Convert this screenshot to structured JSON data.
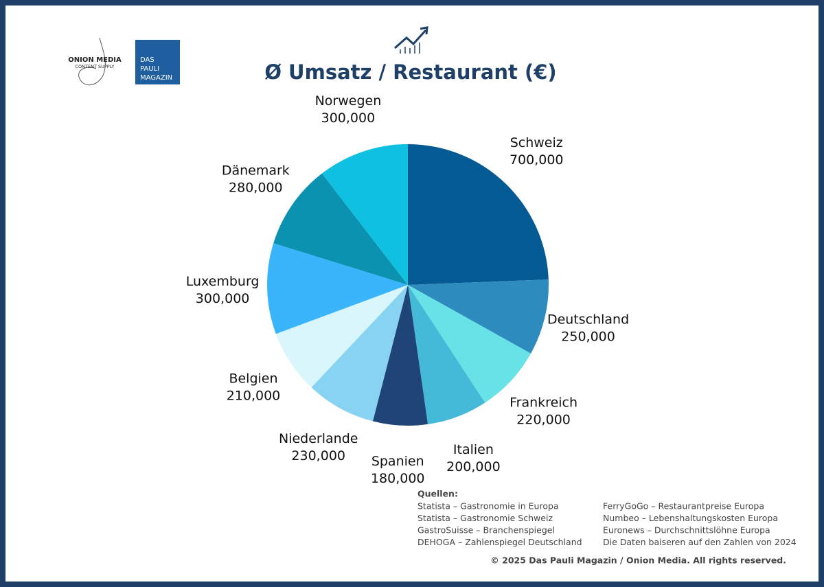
{
  "chart_data": {
    "type": "pie",
    "title": "Ø Umsatz / Restaurant (€)",
    "categories": [
      "Schweiz",
      "Deutschland",
      "Frankreich",
      "Italien",
      "Spanien",
      "Niederlande",
      "Belgien",
      "Luxemburg",
      "Dänemark",
      "Norwegen"
    ],
    "values": [
      700000,
      250000,
      220000,
      200000,
      180000,
      230000,
      210000,
      300000,
      280000,
      300000
    ],
    "value_labels": [
      "700,000",
      "250,000",
      "220,000",
      "200,000",
      "180,000",
      "230,000",
      "210,000",
      "300,000",
      "280,000",
      "300,000"
    ],
    "colors": [
      "#045a92",
      "#2e8bbd",
      "#67e3e8",
      "#45b9d8",
      "#1e4478",
      "#88d3f2",
      "#d8f6fc",
      "#3ab5fb",
      "#0a92b0",
      "#0fc0e0"
    ]
  },
  "logos": {
    "onion": [
      "ONION MEDIA",
      "CONTENT SUPPLY"
    ],
    "pauli": [
      "DAS",
      "PAULI",
      "MAGAZIN"
    ]
  },
  "sources": {
    "heading": "Quellen:",
    "left": [
      "Statista – Gastronomie in Europa",
      "Statista – Gastronomie Schweiz",
      "GastroSuisse – Branchenspiegel",
      "DEHOGA – Zahlenspiegel Deutschland"
    ],
    "right": [
      "FerryGoGo – Restaurantpreise Europa",
      "Numbeo – Lebenshaltungskosten Europa",
      "Euronews – Durchschnittslöhne Europa",
      "Die Daten baiseren auf den Zahlen von 2024"
    ]
  },
  "copyright": "© 2025 Das Pauli Magazin / Onion Media. All rights reserved."
}
